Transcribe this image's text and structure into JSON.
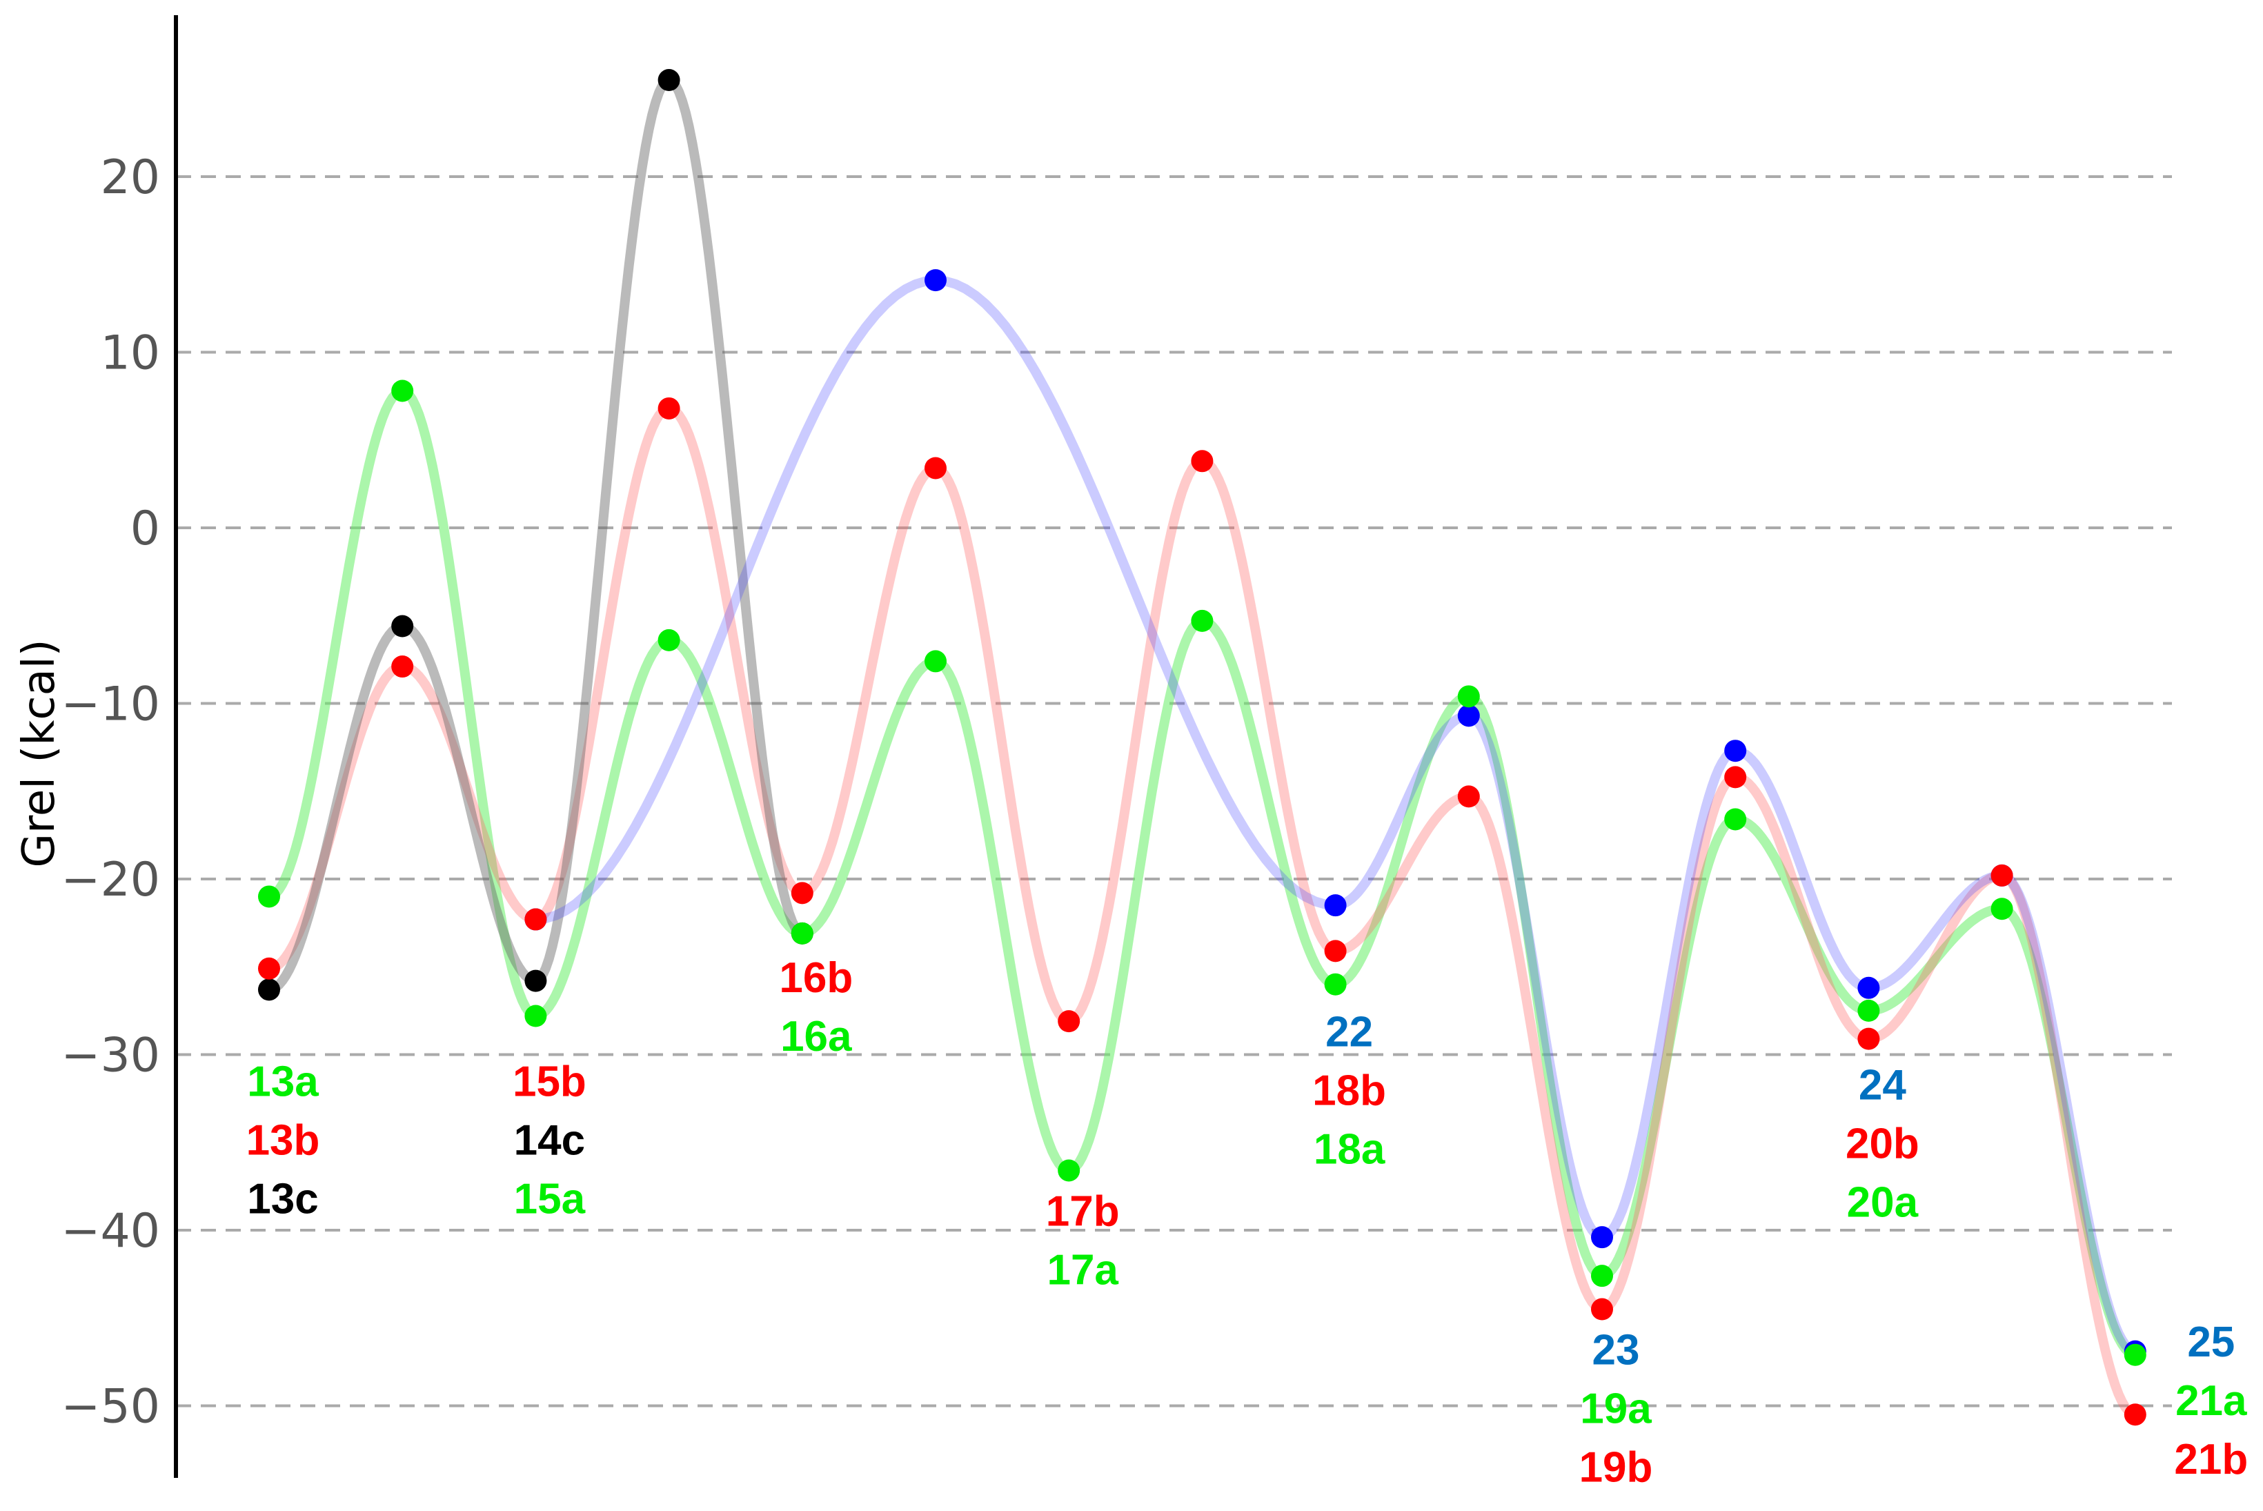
{
  "chart_data": {
    "type": "line",
    "ylabel": "Grel (kcal)",
    "ylim": [
      -54,
      30
    ],
    "yticks": [
      20,
      10,
      0,
      -10,
      -20,
      -30,
      -40,
      -50
    ],
    "ytick_labels": [
      "20",
      "10",
      "0",
      "−10",
      "−20",
      "−30",
      "−40",
      "−50"
    ],
    "grid": "horizontal dashed",
    "x": [
      1,
      2,
      3,
      4,
      5,
      6,
      7,
      8,
      9,
      10,
      11,
      12,
      13,
      14,
      15
    ],
    "colors": {
      "a": "#00ee00",
      "b": "#ff0000",
      "c": "#000000",
      "blue": "#0000ff",
      "blue_label": "#0070c0"
    },
    "series": [
      {
        "key": "a",
        "points": [
          [
            1,
            -21
          ],
          [
            2,
            7.8
          ],
          [
            3,
            -27.8
          ],
          [
            4,
            -6.4
          ],
          [
            5,
            -23.1
          ],
          [
            6,
            -7.6
          ],
          [
            7,
            -36.6
          ],
          [
            8,
            -5.3
          ],
          [
            9,
            -26.0
          ],
          [
            10,
            -9.6
          ],
          [
            11,
            -42.6
          ],
          [
            12,
            -16.6
          ],
          [
            13,
            -27.5
          ],
          [
            14,
            -21.7
          ],
          [
            15,
            -47.1
          ]
        ]
      },
      {
        "key": "b",
        "points": [
          [
            1,
            -25.1
          ],
          [
            2,
            -7.9
          ],
          [
            3,
            -22.3
          ],
          [
            4,
            6.8
          ],
          [
            5,
            -20.8
          ],
          [
            6,
            3.4
          ],
          [
            7,
            -28.1
          ],
          [
            8,
            3.8
          ],
          [
            9,
            -24.1
          ],
          [
            10,
            -15.3
          ],
          [
            11,
            -44.5
          ],
          [
            12,
            -14.2
          ],
          [
            13,
            -29.1
          ],
          [
            14,
            -19.8
          ],
          [
            15,
            -50.5
          ]
        ]
      },
      {
        "key": "c",
        "points": [
          [
            1,
            -26.3
          ],
          [
            2,
            -5.6
          ],
          [
            3,
            -25.8
          ],
          [
            4,
            25.5
          ],
          [
            5,
            -23.1
          ]
        ]
      },
      {
        "key": "blue",
        "points": [
          [
            3,
            -22.3
          ],
          [
            6,
            14.1
          ],
          [
            9,
            -21.5
          ],
          [
            10,
            -10.7
          ],
          [
            11,
            -40.4
          ],
          [
            12,
            -12.7
          ],
          [
            13,
            -26.2
          ],
          [
            14,
            -19.8
          ],
          [
            15,
            -46.9
          ]
        ]
      }
    ],
    "state_labels": [
      {
        "x": 1,
        "lines": [
          {
            "text": "13a",
            "key": "a"
          },
          {
            "text": "13b",
            "key": "b"
          },
          {
            "text": "13c",
            "key": "c"
          }
        ]
      },
      {
        "x": 3,
        "lines": [
          {
            "text": "15b",
            "key": "b"
          },
          {
            "text": "14c",
            "key": "c"
          },
          {
            "text": "15a",
            "key": "a"
          }
        ]
      },
      {
        "x": 5,
        "lines": [
          {
            "text": "16b",
            "key": "b"
          },
          {
            "text": "16a",
            "key": "a"
          }
        ]
      },
      {
        "x": 7,
        "lines": [
          {
            "text": "17b",
            "key": "b"
          },
          {
            "text": "17a",
            "key": "a"
          }
        ]
      },
      {
        "x": 9,
        "lines": [
          {
            "text": "22",
            "key": "blue_label"
          },
          {
            "text": "18b",
            "key": "b"
          },
          {
            "text": "18a",
            "key": "a"
          }
        ]
      },
      {
        "x": 11,
        "lines": [
          {
            "text": "23",
            "key": "blue_label"
          },
          {
            "text": "19a",
            "key": "a"
          },
          {
            "text": "19b",
            "key": "b"
          }
        ]
      },
      {
        "x": 13,
        "lines": [
          {
            "text": "24",
            "key": "blue_label"
          },
          {
            "text": "20b",
            "key": "b"
          },
          {
            "text": "20a",
            "key": "a"
          }
        ]
      },
      {
        "x": 15,
        "lines": [
          {
            "text": "25",
            "key": "blue_label"
          },
          {
            "text": "21a",
            "key": "a"
          },
          {
            "text": "21b",
            "key": "b"
          }
        ]
      }
    ]
  }
}
